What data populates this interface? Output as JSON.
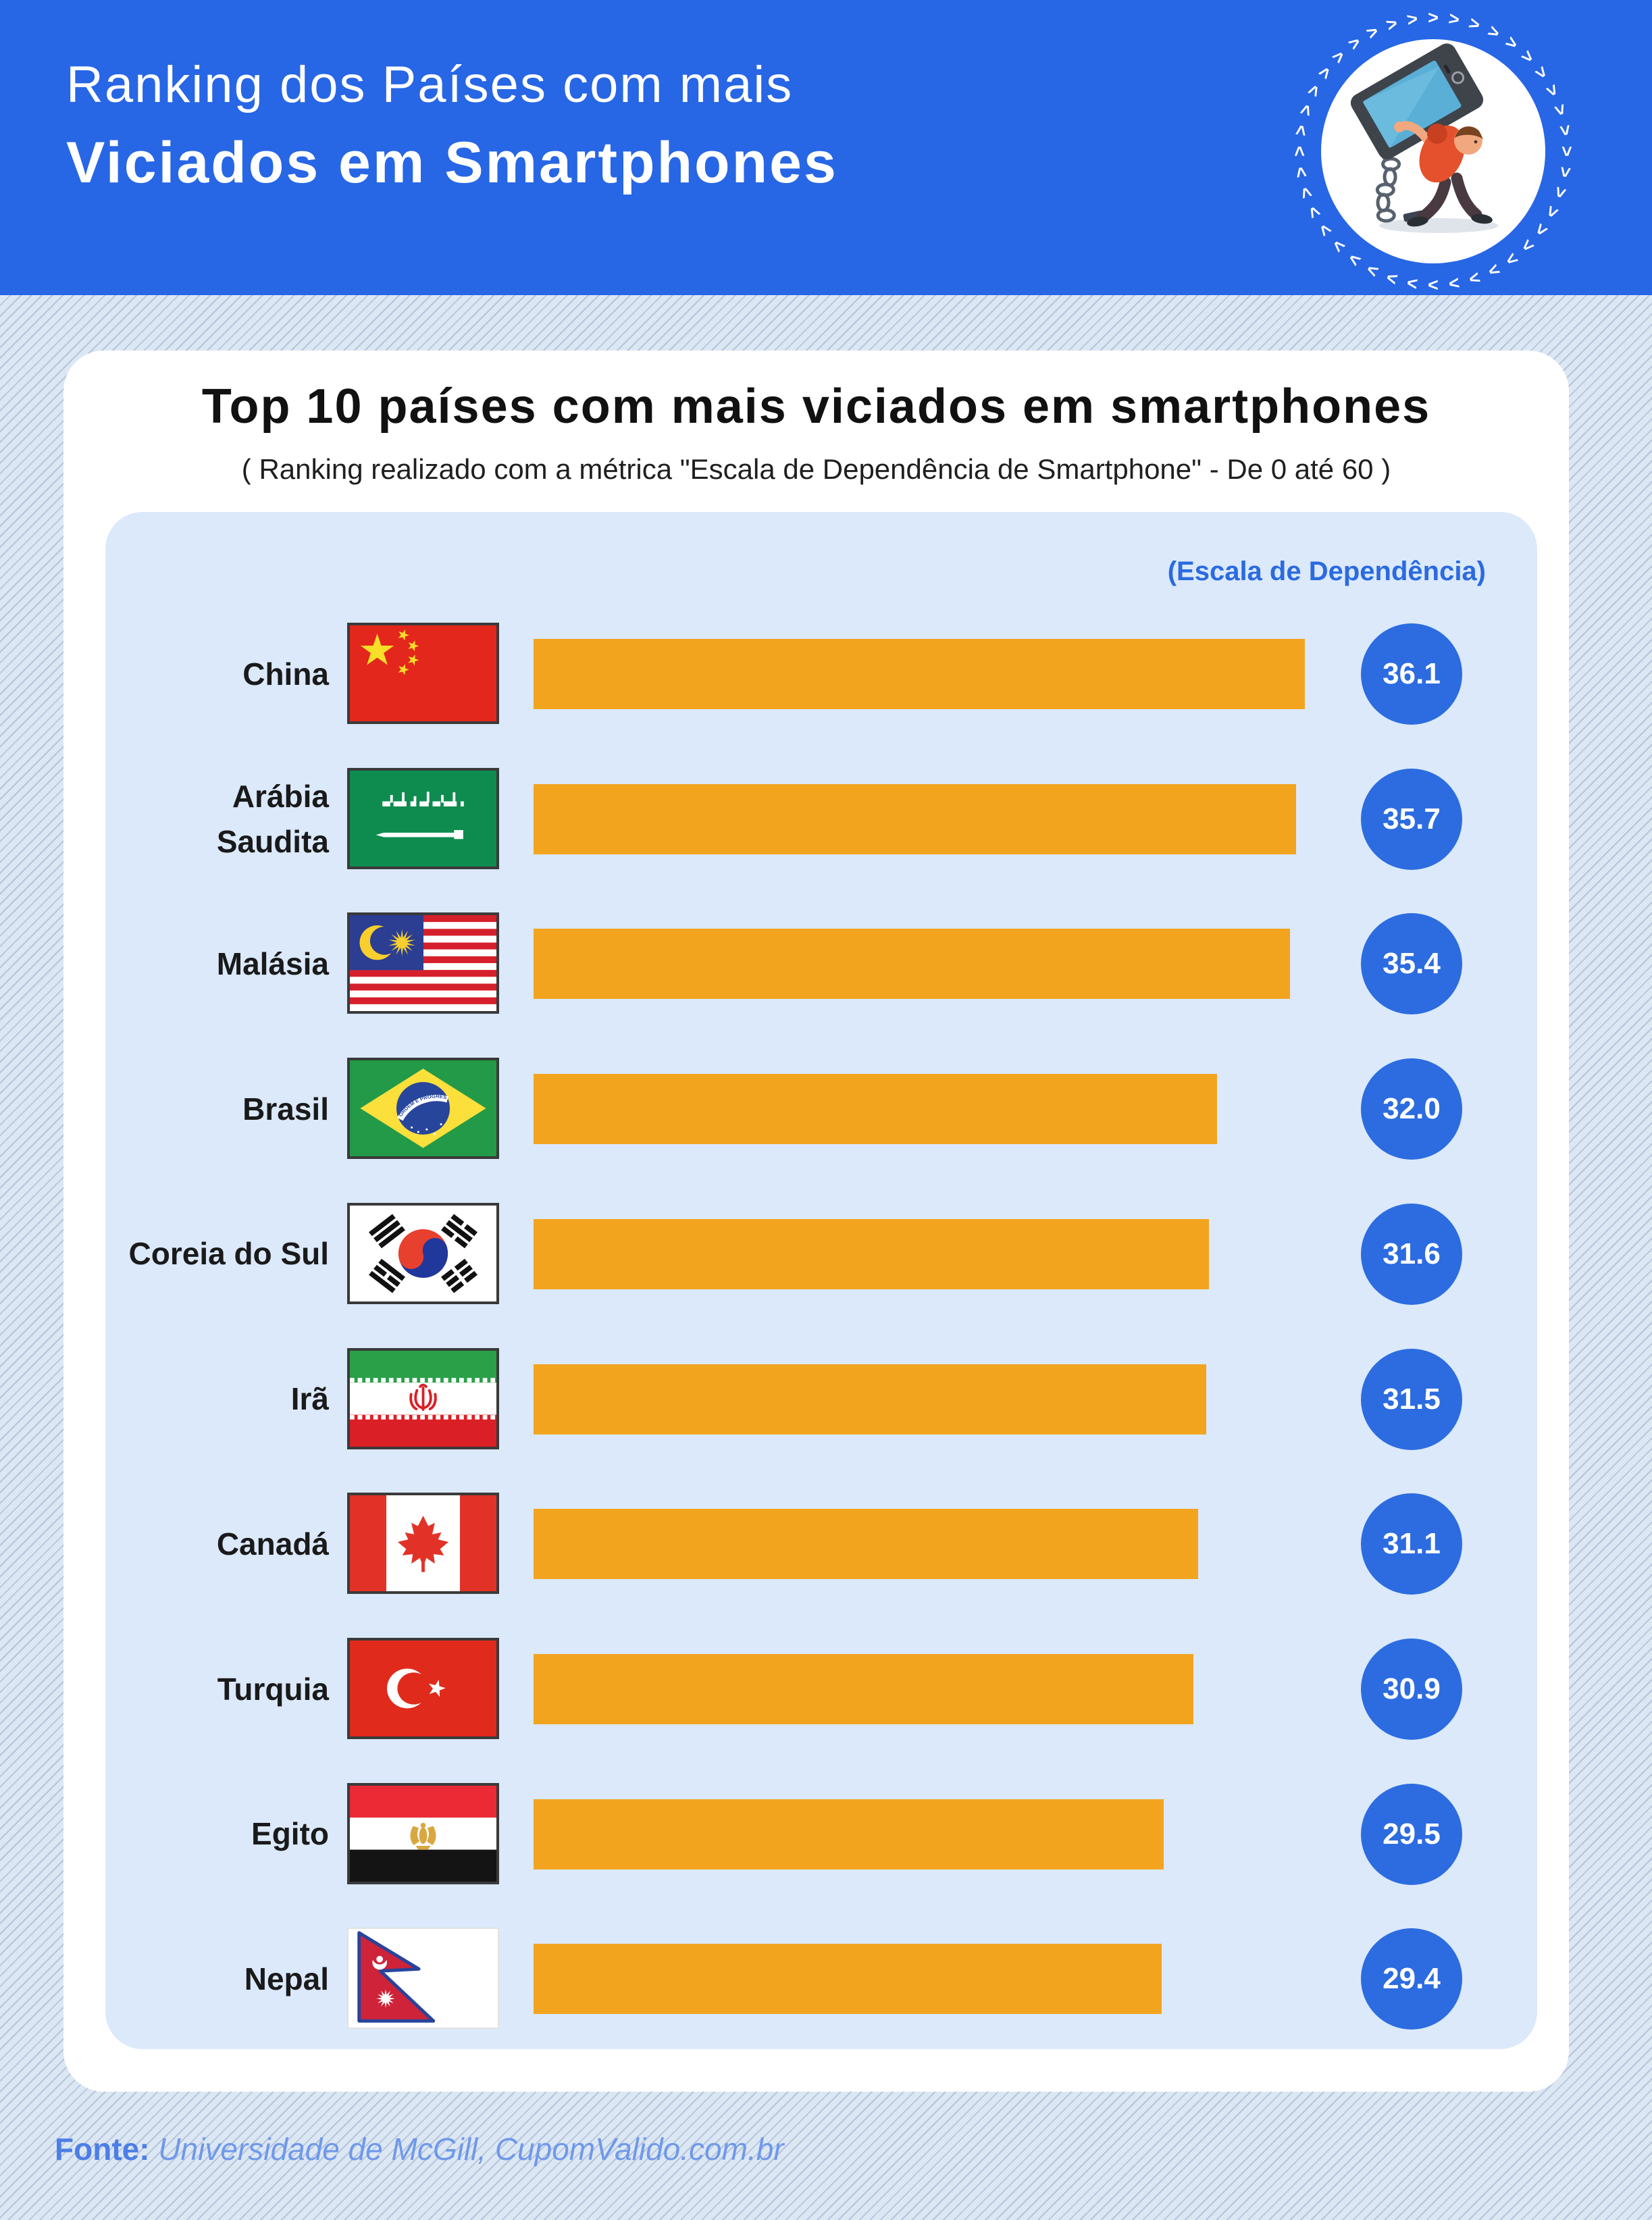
{
  "header": {
    "title_line1": "Ranking dos Países com mais",
    "title_line2": "Viciados em Smartphones",
    "background": "#2766E5",
    "logo": "smartphone-addict-badge"
  },
  "card": {
    "title": "Top 10 países com mais viciados em smartphones",
    "subtitle": "( Ranking realizado com a métrica \"Escala de Dependência de Smartphone\" - De 0 até 60 )",
    "scale_label": "(Escala de Dependência)"
  },
  "chart_data": {
    "type": "bar",
    "orientation": "horizontal",
    "title": "Top 10 países com mais viciados em smartphones",
    "value_label": "(Escala de Dependência)",
    "value_range": [
      0,
      60
    ],
    "bar_color": "#F3A41F",
    "badge_color": "#2C6CE0",
    "grid": false,
    "categories": [
      "China",
      "Arábia Saudita",
      "Malásia",
      "Brasil",
      "Coreia do Sul",
      "Irã",
      "Canadá",
      "Turquia",
      "Egito",
      "Nepal"
    ],
    "values": [
      36.1,
      35.7,
      35.4,
      32.0,
      31.6,
      31.5,
      31.1,
      30.9,
      29.5,
      29.4
    ],
    "items": [
      {
        "label": "China",
        "code": "cn",
        "value": "36.1"
      },
      {
        "label": "Arábia\nSaudita",
        "code": "sa",
        "value": "35.7"
      },
      {
        "label": "Malásia",
        "code": "my",
        "value": "35.4"
      },
      {
        "label": "Brasil",
        "code": "br",
        "value": "32.0"
      },
      {
        "label": "Coreia do Sul",
        "code": "kr",
        "value": "31.6"
      },
      {
        "label": "Irã",
        "code": "ir",
        "value": "31.5"
      },
      {
        "label": "Canadá",
        "code": "ca",
        "value": "31.1"
      },
      {
        "label": "Turquia",
        "code": "tr",
        "value": "30.9"
      },
      {
        "label": "Egito",
        "code": "eg",
        "value": "29.5"
      },
      {
        "label": "Nepal",
        "code": "np",
        "value": "29.4"
      }
    ]
  },
  "footer": {
    "label": "Fonte:",
    "source": "Universidade de McGill, CupomValido.com.br"
  },
  "colors": {
    "header_blue": "#2766E5",
    "panel_blue": "#DBE9FB",
    "bar_orange": "#F3A41F",
    "badge_blue": "#2C6CE0",
    "scale_label_blue": "#2B6AE0",
    "stripe_line": "#B8C4DA",
    "stripe_base": "#DCE7F4",
    "footer_label": "#4B7EE6",
    "footer_source": "#6F99EA"
  }
}
